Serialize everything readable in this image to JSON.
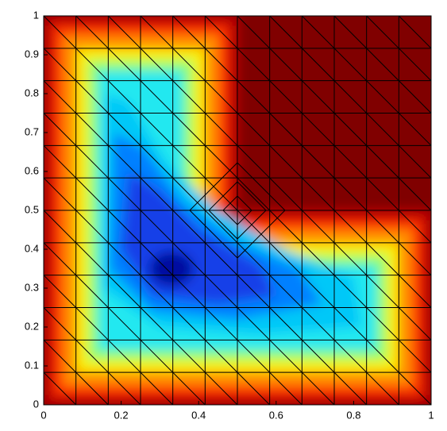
{
  "chart_data": {
    "type": "contour",
    "xlim": [
      0,
      1
    ],
    "ylim": [
      0,
      1
    ],
    "xticks": [
      0,
      0.2,
      0.4,
      0.6,
      0.8,
      1
    ],
    "yticks": [
      0,
      0.1,
      0.2,
      0.3,
      0.4,
      0.5,
      0.6,
      0.7,
      0.8,
      0.9,
      1
    ]
  }
}
